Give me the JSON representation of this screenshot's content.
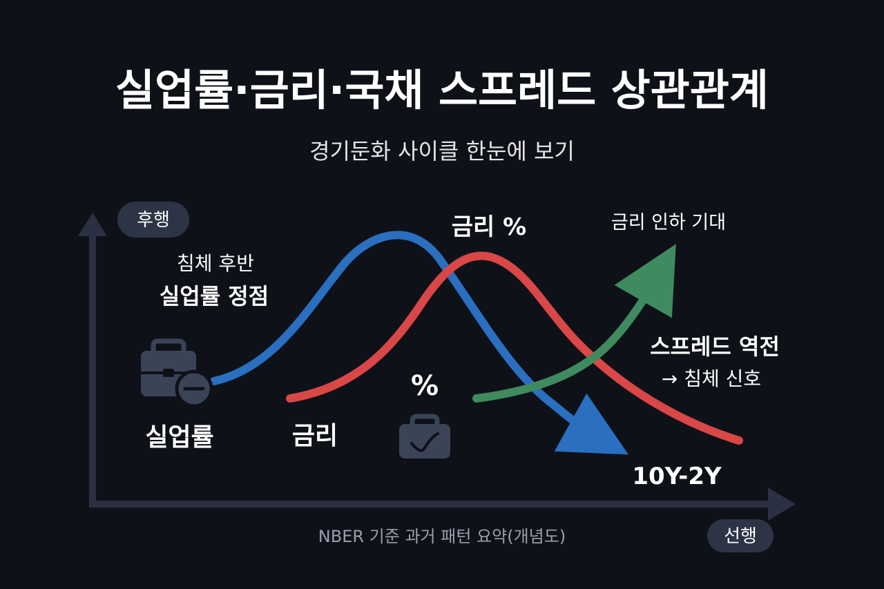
{
  "title": "실업률·금리·국채 스프레드 상관관계",
  "subtitle": "경기둔화 사이클 한눈에 보기",
  "axes": {
    "y_badge": "후행",
    "x_badge": "선행",
    "caption": "NBER 기준 과거 패턴 요약(개념도)"
  },
  "annotations": {
    "unemployment_peak_line1": "침체 후반",
    "unemployment_peak_line2": "실업률 정점",
    "rate_label": "금리 %",
    "rate_cut": "금리 인하 기대",
    "spread_inversion_line1": "스프레드 역전",
    "spread_inversion_line2": "→ 침체 신호",
    "percent_symbol": "%"
  },
  "series_labels": {
    "unemployment": "실업률",
    "rate": "금리",
    "spread": "10Y-2Y"
  },
  "colors": {
    "background": "#0f1119",
    "axis": "#2b3142",
    "unemployment": "#2a6fc0",
    "rate": "#d94747",
    "spread": "#3f8a5f",
    "icon": "#3b4457",
    "badge": "#2d3445"
  },
  "icons": {
    "unemployment": "briefcase-minus-icon",
    "spread": "briefcase-check-icon"
  }
}
